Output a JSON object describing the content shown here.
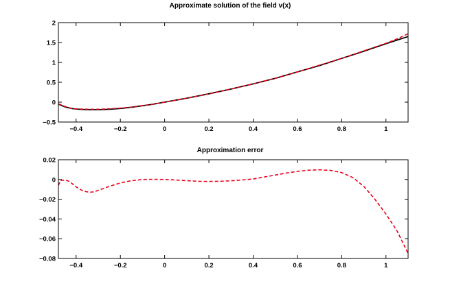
{
  "chart_data": [
    {
      "type": "line",
      "title": "Approximate solution of the field v(x)",
      "xlabel": "",
      "ylabel": "",
      "xlim": [
        -0.48,
        1.1
      ],
      "ylim": [
        -0.5,
        2
      ],
      "xticks": [
        -0.4,
        -0.2,
        0,
        0.2,
        0.4,
        0.6,
        0.8,
        1
      ],
      "xtick_labels": [
        "−0.4",
        "−0.2",
        "0",
        "0.2",
        "0.4",
        "0.6",
        "0.8",
        "1"
      ],
      "yticks": [
        -0.5,
        0,
        0.5,
        1,
        1.5,
        2
      ],
      "ytick_labels": [
        "−0.5",
        "0",
        "0.5",
        "1",
        "1.5",
        "2"
      ],
      "grid": false,
      "series": [
        {
          "color": "#000000",
          "style": "solid",
          "x": [
            -0.48,
            -0.45,
            -0.42,
            -0.4,
            -0.35,
            -0.32,
            -0.3,
            -0.25,
            -0.2,
            -0.15,
            -0.1,
            -0.05,
            0,
            0.1,
            0.2,
            0.3,
            0.4,
            0.5,
            0.6,
            0.7,
            0.8,
            0.9,
            1,
            1.05,
            1.1
          ],
          "y": [
            -0.05,
            -0.12,
            -0.16,
            -0.175,
            -0.19,
            -0.19,
            -0.19,
            -0.18,
            -0.16,
            -0.13,
            -0.09,
            -0.05,
            0,
            0.1,
            0.21,
            0.33,
            0.46,
            0.6,
            0.76,
            0.92,
            1.1,
            1.28,
            1.47,
            1.56,
            1.65
          ]
        },
        {
          "color": "#e8001c",
          "style": "dashed",
          "x": [
            -0.48,
            -0.45,
            -0.42,
            -0.4,
            -0.35,
            -0.32,
            -0.3,
            -0.25,
            -0.2,
            -0.15,
            -0.1,
            -0.05,
            0,
            0.1,
            0.2,
            0.3,
            0.4,
            0.5,
            0.6,
            0.7,
            0.8,
            0.9,
            1,
            1.05,
            1.1
          ],
          "y": [
            -0.04,
            -0.11,
            -0.158,
            -0.17,
            -0.177,
            -0.18,
            -0.178,
            -0.168,
            -0.15,
            -0.123,
            -0.085,
            -0.048,
            0,
            0.1,
            0.21,
            0.33,
            0.46,
            0.6,
            0.76,
            0.93,
            1.1,
            1.29,
            1.48,
            1.59,
            1.72
          ]
        }
      ]
    },
    {
      "type": "line",
      "title": "Approximation error",
      "xlabel": "",
      "ylabel": "",
      "xlim": [
        -0.48,
        1.1
      ],
      "ylim": [
        -0.08,
        0.02
      ],
      "xticks": [
        -0.4,
        -0.2,
        0,
        0.2,
        0.4,
        0.6,
        0.8,
        1
      ],
      "xtick_labels": [
        "−0.4",
        "−0.2",
        "0",
        "0.2",
        "0.4",
        "0.6",
        "0.8",
        "1"
      ],
      "yticks": [
        -0.08,
        -0.06,
        -0.04,
        -0.02,
        0,
        0.02
      ],
      "ytick_labels": [
        "−0.08",
        "−0.06",
        "−0.04",
        "−0.02",
        "0",
        "0.02"
      ],
      "grid": false,
      "series": [
        {
          "color": "#e8001c",
          "style": "dashed",
          "x": [
            -0.48,
            -0.47,
            -0.45,
            -0.43,
            -0.4,
            -0.37,
            -0.34,
            -0.32,
            -0.3,
            -0.25,
            -0.2,
            -0.15,
            -0.1,
            -0.05,
            0,
            0.05,
            0.1,
            0.15,
            0.2,
            0.25,
            0.3,
            0.35,
            0.4,
            0.45,
            0.5,
            0.55,
            0.6,
            0.65,
            0.7,
            0.75,
            0.8,
            0.85,
            0.9,
            0.95,
            1,
            1.05,
            1.1
          ],
          "y": [
            -0.006,
            -0.001,
            -0.0005,
            -0.002,
            -0.0075,
            -0.0115,
            -0.013,
            -0.0125,
            -0.011,
            -0.007,
            -0.0035,
            -0.0012,
            0,
            0.0002,
            0,
            -0.0005,
            -0.0012,
            -0.0018,
            -0.002,
            -0.0018,
            -0.0013,
            -0.0005,
            0.0005,
            0.0025,
            0.0045,
            0.0065,
            0.0082,
            0.0094,
            0.0098,
            0.0092,
            0.007,
            0.002,
            -0.007,
            -0.02,
            -0.035,
            -0.052,
            -0.075
          ]
        }
      ]
    }
  ]
}
